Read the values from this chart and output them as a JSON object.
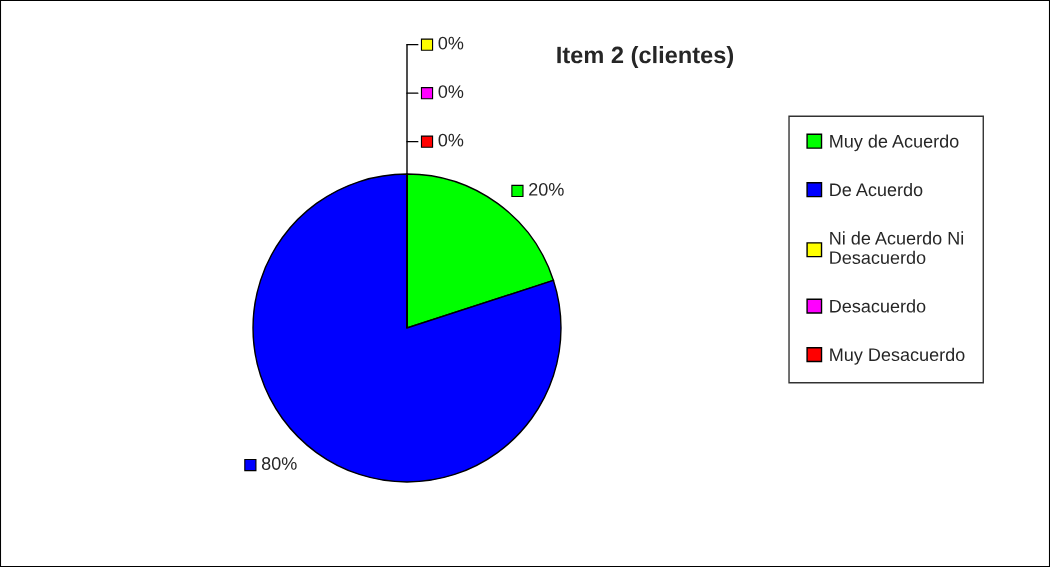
{
  "chart_data": {
    "type": "pie",
    "title": "Item 2 (clientes)",
    "categories": [
      "Muy de Acuerdo",
      "De Acuerdo",
      "Ni de Acuerdo Ni Desacuerdo",
      "Desacuerdo",
      "Muy Desacuerdo"
    ],
    "values": [
      20,
      80,
      0,
      0,
      0
    ],
    "colors": [
      "#00ff00",
      "#0000ff",
      "#ffff00",
      "#ff00ff",
      "#ff0000"
    ],
    "value_labels": [
      "20%",
      "80%",
      "0%",
      "0%",
      "0%"
    ],
    "legend": "right"
  }
}
